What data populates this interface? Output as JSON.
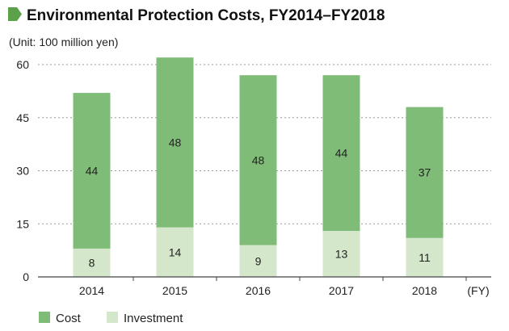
{
  "chart_data": {
    "type": "bar",
    "stacked": true,
    "title": "Environmental Protection Costs, FY2014–FY2018",
    "unit_label": "(Unit: 100 million yen)",
    "x_unit": "(FY)",
    "categories": [
      "2014",
      "2015",
      "2016",
      "2017",
      "2018"
    ],
    "ylim": [
      0,
      60
    ],
    "yticks": [
      0,
      15,
      30,
      45,
      60
    ],
    "grid": true,
    "legend_position": "bottom-left",
    "series": [
      {
        "name": "Investment",
        "values": [
          8,
          14,
          9,
          13,
          11
        ],
        "color": "#d4e7cb"
      },
      {
        "name": "Cost",
        "values": [
          44,
          48,
          48,
          44,
          37
        ],
        "color": "#7fbc77"
      }
    ],
    "legend": [
      {
        "name": "Cost",
        "color": "#7fbc77"
      },
      {
        "name": "Investment",
        "color": "#d4e7cb"
      }
    ],
    "title_marker_color": "#5aa14a"
  }
}
